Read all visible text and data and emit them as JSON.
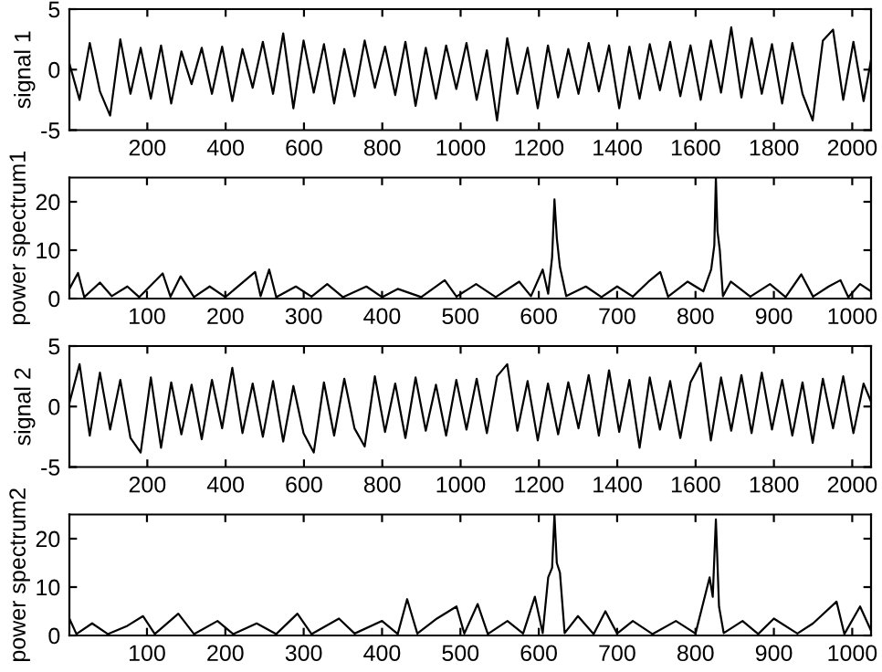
{
  "chart_data": [
    {
      "type": "line",
      "ylabel": "signal 1",
      "xlim": [
        1,
        2048
      ],
      "xticks": [
        200,
        400,
        600,
        800,
        1000,
        1200,
        1400,
        1600,
        1800,
        2000
      ],
      "ylim": [
        -5,
        5
      ],
      "yticks": [
        -5,
        0,
        5
      ],
      "series": [
        {
          "color": "#000000",
          "x": [
            1,
            27,
            53,
            79,
            105,
            131,
            157,
            183,
            209,
            235,
            261,
            287,
            313,
            339,
            365,
            391,
            417,
            443,
            469,
            495,
            521,
            547,
            573,
            599,
            625,
            651,
            677,
            703,
            729,
            755,
            781,
            807,
            833,
            859,
            885,
            911,
            937,
            963,
            989,
            1015,
            1041,
            1067,
            1093,
            1119,
            1145,
            1171,
            1197,
            1223,
            1249,
            1275,
            1301,
            1327,
            1353,
            1379,
            1405,
            1431,
            1457,
            1483,
            1509,
            1535,
            1561,
            1587,
            1613,
            1639,
            1665,
            1691,
            1717,
            1743,
            1769,
            1795,
            1821,
            1847,
            1873,
            1899,
            1925,
            1951,
            1977,
            2003,
            2029,
            2048
          ],
          "values": [
            0.5,
            -2.5,
            2.2,
            -1.8,
            -3.8,
            2.5,
            -2.0,
            1.8,
            -2.4,
            2.0,
            -2.8,
            1.5,
            -1.2,
            1.8,
            -2.0,
            1.9,
            -2.6,
            1.7,
            -1.5,
            2.3,
            -2.0,
            3.0,
            -3.2,
            2.4,
            -1.9,
            2.1,
            -2.8,
            1.7,
            -2.2,
            2.4,
            -1.5,
            1.9,
            -2.1,
            2.3,
            -3.0,
            1.8,
            -2.4,
            2.0,
            -1.6,
            2.2,
            -2.5,
            1.6,
            -4.2,
            2.6,
            -2.0,
            1.8,
            -3.2,
            2.0,
            -2.3,
            1.7,
            -2.0,
            2.2,
            -1.8,
            2.0,
            -3.2,
            1.9,
            -2.4,
            2.1,
            -1.7,
            2.3,
            -2.2,
            2.0,
            -2.5,
            2.4,
            -1.9,
            3.5,
            -2.3,
            2.6,
            -2.0,
            2.1,
            -2.8,
            2.2,
            -2.0,
            -4.2,
            2.4,
            3.3,
            -2.5,
            2.3,
            -2.6,
            0.8
          ]
        }
      ]
    },
    {
      "type": "line",
      "ylabel": "power spectrum1",
      "xlim": [
        1,
        1024
      ],
      "xticks": [
        100,
        200,
        300,
        400,
        500,
        600,
        700,
        800,
        900,
        1000
      ],
      "ylim": [
        0,
        25
      ],
      "yticks": [
        0,
        10,
        20
      ],
      "series": [
        {
          "color": "#000000",
          "x": [
            1,
            12,
            20,
            40,
            55,
            75,
            90,
            120,
            130,
            143,
            160,
            180,
            200,
            238,
            245,
            256,
            265,
            290,
            310,
            330,
            350,
            380,
            400,
            420,
            450,
            480,
            495,
            520,
            545,
            575,
            590,
            605,
            612,
            617,
            620,
            623,
            627,
            635,
            660,
            680,
            700,
            720,
            740,
            755,
            765,
            790,
            810,
            820,
            824,
            826,
            828,
            831,
            835,
            845,
            870,
            895,
            915,
            935,
            950,
            970,
            985,
            995,
            1010,
            1024
          ],
          "values": [
            2,
            5.3,
            0.3,
            3.3,
            0.5,
            2.5,
            0.3,
            5.2,
            0.4,
            4.6,
            0.3,
            2.5,
            0.3,
            5.5,
            0.5,
            6,
            0.3,
            2.5,
            0.4,
            3,
            0.3,
            2.5,
            0.3,
            2,
            0.3,
            3.8,
            0.4,
            3,
            0.3,
            3.5,
            0.5,
            6,
            1,
            8.5,
            20.5,
            12.5,
            6.5,
            0.5,
            2.5,
            0.3,
            2.5,
            0.4,
            3.5,
            5.5,
            0.4,
            3.5,
            1.5,
            6,
            11,
            25,
            14,
            10,
            0.5,
            3.5,
            0.4,
            3,
            0.3,
            5,
            0.4,
            2.5,
            3.8,
            0.3,
            3,
            1.5
          ]
        }
      ]
    },
    {
      "type": "line",
      "ylabel": "signal 2",
      "xlim": [
        1,
        2048
      ],
      "xticks": [
        200,
        400,
        600,
        800,
        1000,
        1200,
        1400,
        1600,
        1800,
        2000
      ],
      "ylim": [
        -5,
        5
      ],
      "yticks": [
        -5,
        0,
        5
      ],
      "series": [
        {
          "color": "#000000",
          "x": [
            1,
            27,
            53,
            79,
            105,
            131,
            157,
            183,
            209,
            235,
            261,
            287,
            313,
            339,
            365,
            391,
            417,
            443,
            469,
            495,
            521,
            547,
            573,
            599,
            625,
            651,
            677,
            703,
            729,
            755,
            781,
            807,
            833,
            859,
            885,
            911,
            937,
            963,
            989,
            1015,
            1041,
            1067,
            1093,
            1119,
            1145,
            1171,
            1197,
            1223,
            1249,
            1275,
            1301,
            1327,
            1353,
            1379,
            1405,
            1431,
            1457,
            1483,
            1509,
            1535,
            1561,
            1587,
            1613,
            1639,
            1665,
            1691,
            1717,
            1743,
            1769,
            1795,
            1821,
            1847,
            1873,
            1899,
            1925,
            1951,
            1977,
            2003,
            2029,
            2048
          ],
          "values": [
            0.3,
            3.5,
            -2.4,
            2.8,
            -1.9,
            2.2,
            -2.6,
            -3.8,
            2.4,
            -3.4,
            2.0,
            -2.3,
            1.8,
            -2.7,
            2.2,
            -1.8,
            3.2,
            -2.2,
            1.9,
            -2.5,
            2.1,
            -2.9,
            1.7,
            -2.2,
            -3.8,
            2.0,
            -2.4,
            2.3,
            -1.8,
            -3.3,
            2.5,
            -2.1,
            1.9,
            -2.6,
            2.4,
            -2.0,
            1.8,
            -2.4,
            2.2,
            -1.9,
            2.3,
            -2.2,
            2.5,
            3.5,
            -2.0,
            2.1,
            -2.8,
            1.9,
            -2.3,
            2.0,
            -1.8,
            2.6,
            -2.4,
            3.0,
            -2.1,
            2.2,
            -3.4,
            2.4,
            -1.9,
            2.1,
            -2.6,
            2.0,
            3.6,
            -2.8,
            2.4,
            -2.0,
            2.6,
            -2.2,
            2.8,
            -1.9,
            2.2,
            -2.4,
            2.0,
            -3.0,
            2.3,
            -1.8,
            2.5,
            -2.2,
            1.9,
            0.4
          ]
        }
      ]
    },
    {
      "type": "line",
      "ylabel": "power spectrum2",
      "xlim": [
        1,
        1024
      ],
      "xticks": [
        100,
        200,
        300,
        400,
        500,
        600,
        700,
        800,
        900,
        1000
      ],
      "ylim": [
        0,
        25
      ],
      "yticks": [
        0,
        10,
        20
      ],
      "series": [
        {
          "color": "#000000",
          "x": [
            1,
            10,
            30,
            50,
            75,
            95,
            110,
            140,
            160,
            190,
            210,
            240,
            265,
            292,
            310,
            345,
            365,
            400,
            420,
            432,
            445,
            470,
            495,
            505,
            522,
            535,
            560,
            580,
            595,
            605,
            612,
            617,
            620,
            623,
            627,
            633,
            650,
            670,
            685,
            700,
            720,
            745,
            775,
            800,
            818,
            822,
            826,
            830,
            836,
            860,
            880,
            900,
            930,
            950,
            980,
            990,
            1010,
            1024
          ],
          "values": [
            3.5,
            0.3,
            2.5,
            0.3,
            2,
            4,
            0.3,
            4.5,
            0.3,
            3,
            0.3,
            2.5,
            0.3,
            4.5,
            0.3,
            3.5,
            0.4,
            3,
            0.3,
            7.5,
            0.4,
            3.5,
            6,
            0.4,
            6.5,
            0.3,
            3,
            0.4,
            8,
            0.5,
            12,
            14,
            25,
            15,
            13,
            0.5,
            4,
            0.3,
            5,
            0.4,
            3,
            0.3,
            3,
            0.4,
            12,
            8,
            24,
            6,
            0.5,
            3,
            0.3,
            3.5,
            0.4,
            2.5,
            7,
            0.3,
            6,
            1
          ]
        }
      ]
    }
  ]
}
